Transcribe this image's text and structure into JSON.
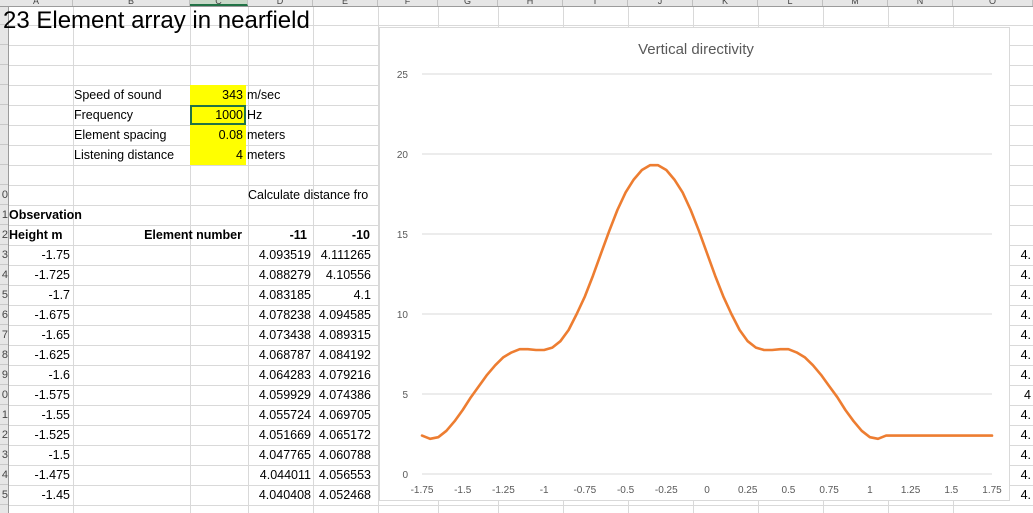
{
  "sheet": {
    "title": "23 Element array in nearfield",
    "column_letters": [
      "A",
      "B",
      "C",
      "D",
      "E",
      "F",
      "G",
      "H",
      "I",
      "J",
      "K",
      "L",
      "M",
      "N",
      "O"
    ],
    "row_numbers": [
      "",
      "",
      "",
      "",
      "",
      "",
      "",
      "",
      "",
      "0",
      "1",
      "2",
      "3",
      "4",
      "5",
      "6",
      "7",
      "8",
      "9",
      "0",
      "1",
      "2",
      "3",
      "4",
      "5"
    ]
  },
  "params": [
    {
      "label": "Speed of sound",
      "value": "343",
      "unit": "m/sec"
    },
    {
      "label": "Frequency",
      "value": "1000",
      "unit": "Hz"
    },
    {
      "label": "Element spacing",
      "value": "0.08",
      "unit": "meters"
    },
    {
      "label": "Listening distance",
      "value": "4",
      "unit": "meters"
    }
  ],
  "calc_label": "Calculate distance fro",
  "observation_label": "Observation",
  "height_label": "Height m",
  "element_number_label": "Element number",
  "element_headers": [
    "-11",
    "-10"
  ],
  "rows": [
    {
      "h": "-1.75",
      "c1": "4.093519",
      "c2": "4.111265"
    },
    {
      "h": "-1.725",
      "c1": "4.088279",
      "c2": "4.10556"
    },
    {
      "h": "-1.7",
      "c1": "4.083185",
      "c2": "4.1"
    },
    {
      "h": "-1.675",
      "c1": "4.078238",
      "c2": "4.094585"
    },
    {
      "h": "-1.65",
      "c1": "4.073438",
      "c2": "4.089315"
    },
    {
      "h": "-1.625",
      "c1": "4.068787",
      "c2": "4.084192"
    },
    {
      "h": "-1.6",
      "c1": "4.064283",
      "c2": "4.079216"
    },
    {
      "h": "-1.575",
      "c1": "4.059929",
      "c2": "4.074386"
    },
    {
      "h": "-1.55",
      "c1": "4.055724",
      "c2": "4.069705"
    },
    {
      "h": "-1.525",
      "c1": "4.051669",
      "c2": "4.065172"
    },
    {
      "h": "-1.5",
      "c1": "4.047765",
      "c2": "4.060788"
    },
    {
      "h": "-1.475",
      "c1": "4.044011",
      "c2": "4.056553"
    },
    {
      "h": "-1.45",
      "c1": "4.040408",
      "c2": "4.052468"
    }
  ],
  "right_edge_values": [
    "4.",
    "4.",
    "4.",
    "4.",
    "4.",
    "4.",
    "4.",
    "4",
    "4.",
    "4.",
    "4.",
    "4.",
    "4."
  ],
  "colors": {
    "chart_line": "#ed7d31",
    "highlight": "#ffff00",
    "selection": "#217346"
  },
  "chart_data": {
    "type": "line",
    "title": "Vertical directivity",
    "xlabel": "",
    "ylabel": "",
    "ylim": [
      0,
      25
    ],
    "yticks": [
      0,
      5,
      10,
      15,
      20,
      25
    ],
    "xtick_labels": [
      "-1.75",
      "-1.5",
      "-1.25",
      "-1",
      "-0.75",
      "-0.5",
      "-0.25",
      "0",
      "0.25",
      "0.5",
      "0.75",
      "1",
      "1.25",
      "1.5",
      "1.75"
    ],
    "grid": true,
    "series": [
      {
        "x": [
          -1.75,
          -1.7,
          -1.65,
          -1.6,
          -1.55,
          -1.5,
          -1.45,
          -1.4,
          -1.35,
          -1.3,
          -1.25,
          -1.2,
          -1.15,
          -1.1,
          -1.05,
          -1.0,
          -0.95,
          -0.9,
          -0.85,
          -0.8,
          -0.75,
          -0.7,
          -0.65,
          -0.6,
          -0.55,
          -0.5,
          -0.45,
          -0.4,
          -0.35,
          -0.3,
          -0.25,
          -0.2,
          -0.15,
          -0.1,
          -0.05,
          0,
          0.05,
          0.1,
          0.15,
          0.2,
          0.25,
          0.3,
          0.35,
          0.4,
          0.45,
          0.5,
          0.55,
          0.6,
          0.65,
          0.7,
          0.75,
          0.8,
          0.85,
          0.9,
          0.95,
          1.0,
          1.05,
          1.1,
          1.15,
          1.2,
          1.25,
          1.3,
          1.35,
          1.4,
          1.45,
          1.5,
          1.55,
          1.6,
          1.65,
          1.7,
          1.75
        ],
        "y": [
          2.4,
          2.2,
          2.3,
          2.7,
          3.3,
          4.0,
          4.8,
          5.5,
          6.2,
          6.8,
          7.3,
          7.6,
          7.8,
          7.8,
          7.75,
          7.75,
          7.9,
          8.3,
          9.0,
          10.0,
          11.1,
          12.4,
          13.8,
          15.2,
          16.5,
          17.6,
          18.4,
          19.0,
          19.3,
          19.3,
          19.0,
          18.4,
          17.6,
          16.5,
          15.2,
          13.8,
          12.4,
          11.1,
          10.0,
          9.0,
          8.3,
          7.9,
          7.75,
          7.75,
          7.8,
          7.8,
          7.6,
          7.3,
          6.8,
          6.2,
          5.5,
          4.8,
          4.0,
          3.3,
          2.7,
          2.3,
          2.2,
          2.4,
          2.4,
          2.4,
          2.4,
          2.4,
          2.4,
          2.4,
          2.4,
          2.4,
          2.4,
          2.4,
          2.4,
          2.4,
          2.4
        ]
      }
    ]
  }
}
